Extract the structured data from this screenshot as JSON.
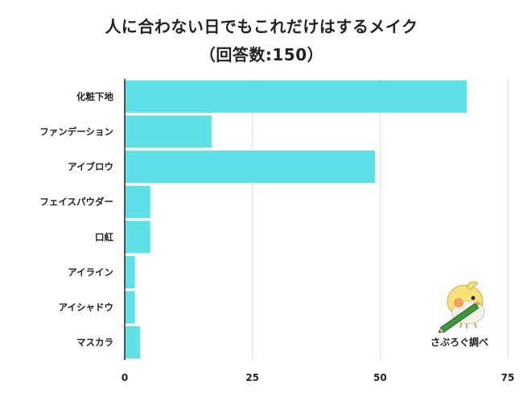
{
  "title_line1": "人に合わない日でもこれだけはするメイク",
  "title_line2": "（回答数:150）",
  "brand": "さぶろぐ調べ",
  "colors": {
    "bar": "#5ee0e6",
    "grid": "#dddddd",
    "axis": "#222222"
  },
  "chart_data": {
    "type": "bar",
    "orientation": "horizontal",
    "title": "人に合わない日でもこれだけはするメイク（回答数:150）",
    "categories": [
      "化粧下地",
      "ファンデーション",
      "アイブロウ",
      "フェイスパウダー",
      "口紅",
      "アイライン",
      "アイシャドウ",
      "マスカラ"
    ],
    "values": [
      67,
      17,
      49,
      5,
      5,
      2,
      2,
      3
    ],
    "xlim": [
      0,
      75
    ],
    "xticks": [
      0,
      25,
      50,
      75
    ],
    "grid": true
  }
}
